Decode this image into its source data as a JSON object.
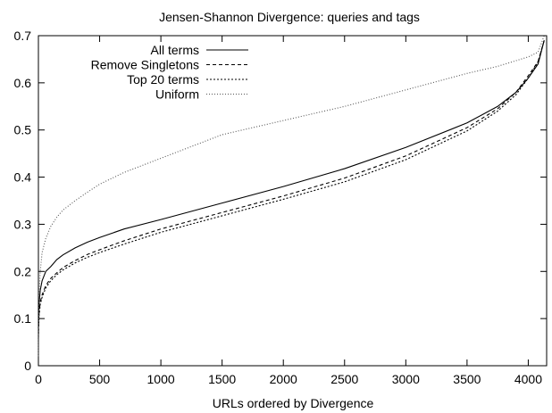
{
  "chart_data": {
    "type": "line",
    "title": "Jensen-Shannon Divergence: queries and tags",
    "xlabel": "URLs ordered by Divergence",
    "ylabel": "",
    "xlim": [
      0,
      4150
    ],
    "ylim": [
      0,
      0.7
    ],
    "xticks": [
      0,
      500,
      1000,
      1500,
      2000,
      2500,
      3000,
      3500,
      4000
    ],
    "yticks": [
      0,
      0.1,
      0.2,
      0.3,
      0.4,
      0.5,
      0.6,
      0.7
    ],
    "xtick_labels": [
      "0",
      "500",
      "1000",
      "1500",
      "2000",
      "2500",
      "3000",
      "3500",
      "4000"
    ],
    "ytick_labels": [
      "0",
      "0.1",
      "0.2",
      "0.3",
      "0.4",
      "0.5",
      "0.6",
      "0.7"
    ],
    "grid": false,
    "legend_position": "top-left",
    "series": [
      {
        "name": "All terms",
        "style": "solid",
        "color": "#000000",
        "x": [
          0,
          5,
          15,
          30,
          60,
          100,
          150,
          200,
          300,
          400,
          500,
          700,
          1000,
          1500,
          2000,
          2500,
          3000,
          3500,
          3750,
          3900,
          4000,
          4080,
          4130
        ],
        "y": [
          0.08,
          0.13,
          0.16,
          0.18,
          0.2,
          0.21,
          0.225,
          0.235,
          0.25,
          0.262,
          0.272,
          0.29,
          0.31,
          0.345,
          0.38,
          0.418,
          0.463,
          0.515,
          0.55,
          0.58,
          0.61,
          0.64,
          0.69
        ]
      },
      {
        "name": "Remove Singletons",
        "style": "dashed",
        "color": "#000000",
        "x": [
          0,
          5,
          15,
          30,
          60,
          100,
          150,
          200,
          300,
          400,
          500,
          700,
          1000,
          1500,
          2000,
          2500,
          3000,
          3500,
          3750,
          3900,
          4000,
          4080,
          4130
        ],
        "y": [
          0.07,
          0.11,
          0.135,
          0.15,
          0.17,
          0.185,
          0.197,
          0.208,
          0.223,
          0.236,
          0.246,
          0.265,
          0.29,
          0.325,
          0.36,
          0.398,
          0.445,
          0.505,
          0.545,
          0.58,
          0.615,
          0.645,
          0.69
        ]
      },
      {
        "name": "Top 20 terms",
        "style": "dotted",
        "color": "#000000",
        "x": [
          0,
          5,
          15,
          30,
          60,
          100,
          150,
          200,
          300,
          400,
          500,
          700,
          1000,
          1500,
          2000,
          2500,
          3000,
          3500,
          3750,
          3900,
          4000,
          4080,
          4130
        ],
        "y": [
          0.06,
          0.105,
          0.13,
          0.145,
          0.165,
          0.18,
          0.193,
          0.203,
          0.218,
          0.23,
          0.24,
          0.258,
          0.283,
          0.318,
          0.353,
          0.39,
          0.437,
          0.498,
          0.54,
          0.575,
          0.61,
          0.645,
          0.69
        ]
      },
      {
        "name": "Uniform",
        "style": "fine-dotted",
        "color": "#555555",
        "x": [
          0,
          5,
          15,
          30,
          60,
          100,
          150,
          200,
          300,
          400,
          500,
          700,
          800,
          1000,
          1500,
          2000,
          2500,
          3000,
          3500,
          3750,
          4000,
          4080,
          4130
        ],
        "y": [
          0.02,
          0.14,
          0.2,
          0.24,
          0.27,
          0.295,
          0.315,
          0.33,
          0.35,
          0.368,
          0.385,
          0.41,
          0.42,
          0.44,
          0.49,
          0.52,
          0.55,
          0.585,
          0.62,
          0.635,
          0.655,
          0.665,
          0.7
        ]
      }
    ]
  }
}
